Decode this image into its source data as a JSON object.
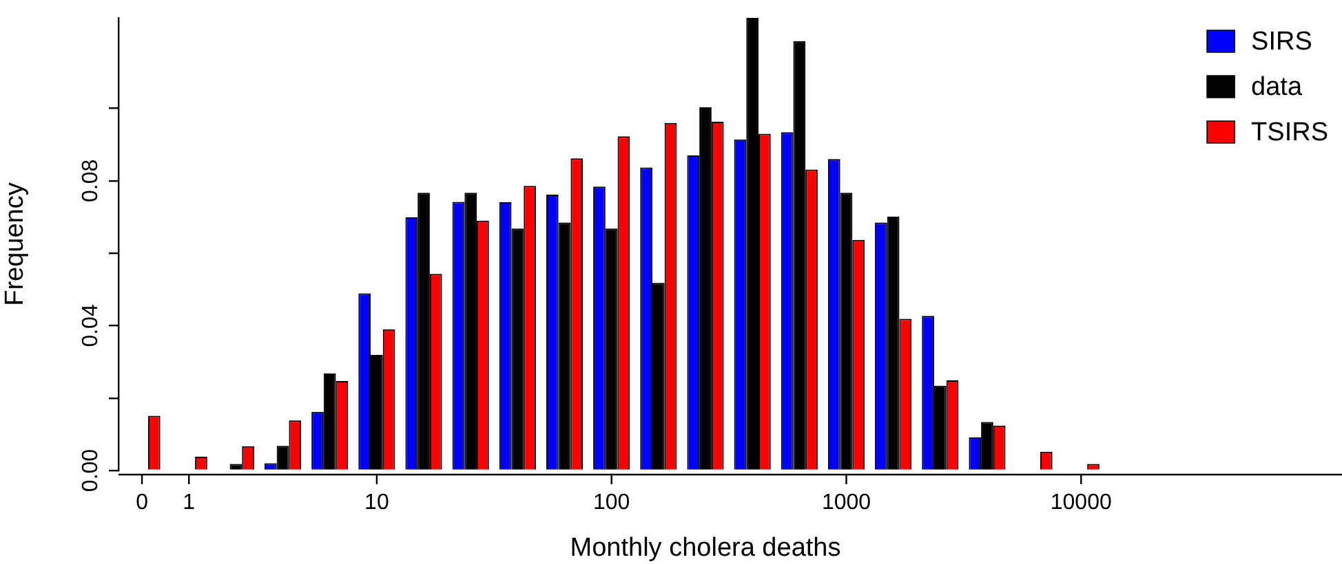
{
  "chart_data": {
    "type": "bar",
    "xlabel": "Monthly cholera deaths",
    "ylabel": "Frequency",
    "categories": [
      "0",
      "1",
      null,
      null,
      null,
      "10",
      null,
      null,
      null,
      null,
      "100",
      null,
      null,
      null,
      null,
      "1000",
      null,
      null,
      null,
      null,
      "10000",
      null,
      null,
      null,
      null
    ],
    "series": [
      {
        "name": "SIRS",
        "color": "#0000ff",
        "values": [
          0,
          0,
          0,
          0.002,
          0.0162,
          0.0489,
          0.0699,
          0.0742,
          0.0741,
          0.0762,
          0.0784,
          0.0837,
          0.087,
          0.0914,
          0.0934,
          0.086,
          0.0685,
          0.0427,
          0.0091,
          0,
          0,
          0,
          0,
          0,
          0
        ]
      },
      {
        "name": "data",
        "color": "#000000",
        "values": [
          0,
          0,
          0.0018,
          0.0068,
          0.0268,
          0.0319,
          0.0767,
          0.0767,
          0.0668,
          0.0685,
          0.0668,
          0.0518,
          0.1003,
          0.125,
          0.1186,
          0.0767,
          0.0701,
          0.0234,
          0.0134,
          0,
          0,
          0,
          0,
          0,
          0
        ]
      },
      {
        "name": "TSIRS",
        "color": "#ff0000",
        "values": [
          0.0151,
          0.0038,
          0.0067,
          0.0138,
          0.0247,
          0.039,
          0.0543,
          0.069,
          0.0786,
          0.0862,
          0.0923,
          0.096,
          0.0963,
          0.093,
          0.0831,
          0.0637,
          0.0419,
          0.0249,
          0.0124,
          0.0052,
          0.0018,
          0,
          0,
          0,
          0
        ]
      }
    ],
    "ylim": [
      0,
      0.125
    ],
    "yticks": [
      {
        "value": 0,
        "label": "0.00"
      },
      {
        "value": 0.02,
        "label": null
      },
      {
        "value": 0.04,
        "label": "0.04"
      },
      {
        "value": 0.06,
        "label": null
      },
      {
        "value": 0.08,
        "label": "0.08"
      },
      {
        "value": 0.1,
        "label": null
      }
    ],
    "legend": "top right",
    "grid": false
  }
}
